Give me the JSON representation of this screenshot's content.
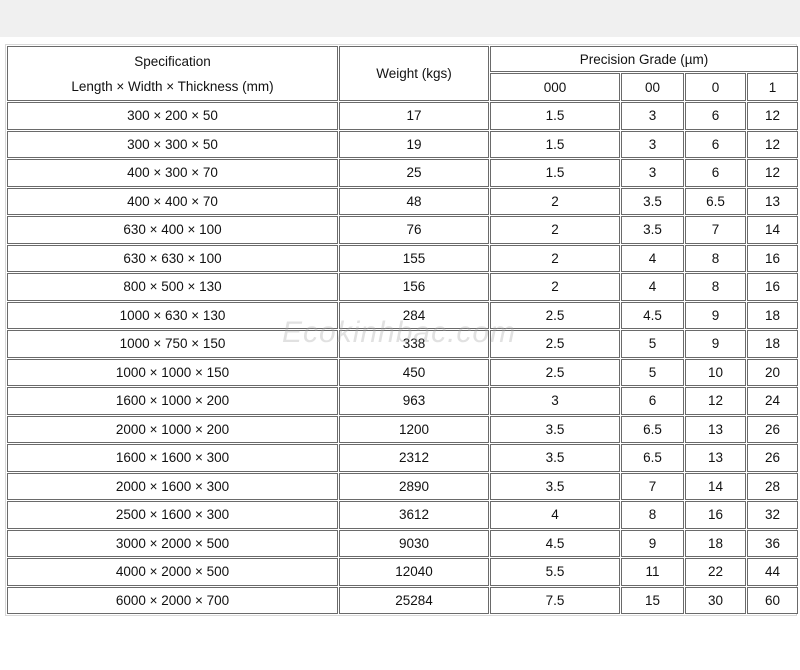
{
  "header": {
    "spec_line1": "Specification",
    "spec_line2": "Length × Width × Thickness (mm)",
    "weight": "Weight (kgs)",
    "precision": "Precision Grade (µm)",
    "grades": [
      "000",
      "00",
      "0",
      "1"
    ]
  },
  "rows": [
    [
      "300 × 200 × 50",
      "17",
      "1.5",
      "3",
      "6",
      "12"
    ],
    [
      "300 × 300 × 50",
      "19",
      "1.5",
      "3",
      "6",
      "12"
    ],
    [
      "400 × 300 × 70",
      "25",
      "1.5",
      "3",
      "6",
      "12"
    ],
    [
      "400 × 400 × 70",
      "48",
      "2",
      "3.5",
      "6.5",
      "13"
    ],
    [
      "630 × 400 × 100",
      "76",
      "2",
      "3.5",
      "7",
      "14"
    ],
    [
      "630 × 630 × 100",
      "155",
      "2",
      "4",
      "8",
      "16"
    ],
    [
      "800 × 500 × 130",
      "156",
      "2",
      "4",
      "8",
      "16"
    ],
    [
      "1000 × 630 × 130",
      "284",
      "2.5",
      "4.5",
      "9",
      "18"
    ],
    [
      "1000 × 750 × 150",
      "338",
      "2.5",
      "5",
      "9",
      "18"
    ],
    [
      "1000 × 1000 × 150",
      "450",
      "2.5",
      "5",
      "10",
      "20"
    ],
    [
      "1600 × 1000 × 200",
      "963",
      "3",
      "6",
      "12",
      "24"
    ],
    [
      "2000 × 1000 × 200",
      "1200",
      "3.5",
      "6.5",
      "13",
      "26"
    ],
    [
      "1600 × 1600 × 300",
      "2312",
      "3.5",
      "6.5",
      "13",
      "26"
    ],
    [
      "2000 × 1600 × 300",
      "2890",
      "3.5",
      "7",
      "14",
      "28"
    ],
    [
      "2500 × 1600 × 300",
      "3612",
      "4",
      "8",
      "16",
      "32"
    ],
    [
      "3000 × 2000 × 500",
      "9030",
      "4.5",
      "9",
      "18",
      "36"
    ],
    [
      "4000 × 2000 × 500",
      "12040",
      "5.5",
      "11",
      "22",
      "44"
    ],
    [
      "6000 × 2000 × 700",
      "25284",
      "7.5",
      "15",
      "30",
      "60"
    ]
  ],
  "watermark": "Ecokinhbac.com"
}
